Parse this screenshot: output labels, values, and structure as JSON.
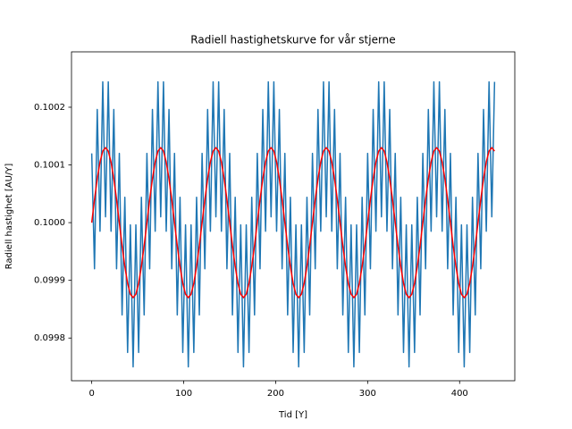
{
  "chart_data": {
    "type": "line",
    "title": "Radiell hastighetskurve for vår stjerne",
    "xlabel": "Tid [Y]",
    "ylabel": "Radiell hastighet [AU/Y]",
    "x": [
      0,
      3,
      6,
      9,
      12,
      15,
      18,
      21,
      24,
      27,
      30,
      33,
      36,
      39,
      42,
      45,
      48,
      51,
      54,
      57,
      60,
      63,
      66,
      69,
      72,
      75,
      78,
      81,
      84,
      87,
      90,
      93,
      96,
      99,
      102,
      105,
      108,
      111,
      114,
      117,
      120,
      123,
      126,
      129,
      132,
      135,
      138,
      141,
      144,
      147,
      150,
      153,
      156,
      159,
      162,
      165,
      168,
      171,
      174,
      177,
      180,
      183,
      186,
      189,
      192,
      195,
      198,
      201,
      204,
      207,
      210,
      213,
      216,
      219,
      222,
      225,
      228,
      231,
      234,
      237,
      240,
      243,
      246,
      249,
      252,
      255,
      258,
      261,
      264,
      267,
      270,
      273,
      276,
      279,
      282,
      285,
      288,
      291,
      294,
      297,
      300,
      303,
      306,
      309,
      312,
      315,
      318,
      321,
      324,
      327,
      330,
      333,
      336,
      339,
      342,
      345,
      348,
      351,
      354,
      357,
      360,
      363,
      366,
      369,
      372,
      375,
      378,
      381,
      384,
      387,
      390,
      393,
      396,
      399,
      402,
      405,
      408,
      411,
      414,
      417,
      420,
      423,
      426,
      429,
      432,
      435,
      438
    ],
    "series": [
      {
        "color": "#1f77b4",
        "values": [
          0.10012,
          0.09992,
          0.100196,
          0.099985,
          0.100244,
          0.10001,
          0.100244,
          0.099985,
          0.100196,
          0.09992,
          0.10012,
          0.09984,
          0.100044,
          0.099775,
          0.099996,
          0.09975,
          0.099996,
          0.099775,
          0.100044,
          0.09984,
          0.10012,
          0.09992,
          0.100196,
          0.099985,
          0.100244,
          0.10001,
          0.100244,
          0.099985,
          0.100196,
          0.09992,
          0.10012,
          0.09984,
          0.100044,
          0.099775,
          0.099996,
          0.09975,
          0.099996,
          0.099775,
          0.100044,
          0.09984,
          0.10012,
          0.09992,
          0.100196,
          0.099985,
          0.100244,
          0.10001,
          0.100244,
          0.099985,
          0.100196,
          0.09992,
          0.10012,
          0.09984,
          0.100044,
          0.099775,
          0.099996,
          0.09975,
          0.099996,
          0.099775,
          0.100044,
          0.09984,
          0.10012,
          0.09992,
          0.100196,
          0.099985,
          0.100244,
          0.10001,
          0.100244,
          0.099985,
          0.100196,
          0.09992,
          0.10012,
          0.09984,
          0.100044,
          0.099775,
          0.099996,
          0.09975,
          0.099996,
          0.099775,
          0.100044,
          0.09984,
          0.10012,
          0.09992,
          0.100196,
          0.099985,
          0.100244,
          0.10001,
          0.100244,
          0.099985,
          0.100196,
          0.09992,
          0.10012,
          0.09984,
          0.100044,
          0.099775,
          0.099996,
          0.09975,
          0.099996,
          0.099775,
          0.100044,
          0.09984,
          0.10012,
          0.09992,
          0.100196,
          0.099985,
          0.100244,
          0.10001,
          0.100244,
          0.099985,
          0.100196,
          0.09992,
          0.10012,
          0.09984,
          0.100044,
          0.099775,
          0.099996,
          0.09975,
          0.099996,
          0.099775,
          0.100044,
          0.09984,
          0.10012,
          0.09992,
          0.100196,
          0.099985,
          0.100244,
          0.10001,
          0.100244,
          0.099985,
          0.100196,
          0.09992,
          0.10012,
          0.09984,
          0.100044,
          0.099775,
          0.099996,
          0.09975,
          0.099996,
          0.099775,
          0.100044,
          0.09984,
          0.10012,
          0.09992,
          0.100196,
          0.099985,
          0.100244,
          0.10001,
          0.100244
        ]
      },
      {
        "color": "#ff0000",
        "values": [
          0.1,
          0.10004,
          0.100076,
          0.100105,
          0.100124,
          0.10013,
          0.100124,
          0.100105,
          0.100076,
          0.10004,
          0.1,
          0.09996,
          0.099924,
          0.099895,
          0.099876,
          0.09987,
          0.099876,
          0.099895,
          0.099924,
          0.09996,
          0.1,
          0.10004,
          0.100076,
          0.100105,
          0.100124,
          0.10013,
          0.100124,
          0.100105,
          0.100076,
          0.10004,
          0.1,
          0.09996,
          0.099924,
          0.099895,
          0.099876,
          0.09987,
          0.099876,
          0.099895,
          0.099924,
          0.09996,
          0.1,
          0.10004,
          0.100076,
          0.100105,
          0.100124,
          0.10013,
          0.100124,
          0.100105,
          0.100076,
          0.10004,
          0.1,
          0.09996,
          0.099924,
          0.099895,
          0.099876,
          0.09987,
          0.099876,
          0.099895,
          0.099924,
          0.09996,
          0.1,
          0.10004,
          0.100076,
          0.100105,
          0.100124,
          0.10013,
          0.100124,
          0.100105,
          0.100076,
          0.10004,
          0.1,
          0.09996,
          0.099924,
          0.099895,
          0.099876,
          0.09987,
          0.099876,
          0.099895,
          0.099924,
          0.09996,
          0.1,
          0.10004,
          0.100076,
          0.100105,
          0.100124,
          0.10013,
          0.100124,
          0.100105,
          0.100076,
          0.10004,
          0.1,
          0.09996,
          0.099924,
          0.099895,
          0.099876,
          0.09987,
          0.099876,
          0.099895,
          0.099924,
          0.09996,
          0.1,
          0.10004,
          0.100076,
          0.100105,
          0.100124,
          0.10013,
          0.100124,
          0.100105,
          0.100076,
          0.10004,
          0.1,
          0.09996,
          0.099924,
          0.099895,
          0.099876,
          0.09987,
          0.099876,
          0.099895,
          0.099924,
          0.09996,
          0.1,
          0.10004,
          0.100076,
          0.100105,
          0.100124,
          0.10013,
          0.100124,
          0.100105,
          0.100076,
          0.10004,
          0.1,
          0.09996,
          0.099924,
          0.099895,
          0.099876,
          0.09987,
          0.099876,
          0.099895,
          0.099924,
          0.09996,
          0.1,
          0.10004,
          0.100076,
          0.100105,
          0.100124,
          0.10013,
          0.100124
        ]
      }
    ],
    "xlim": [
      -22,
      460
    ],
    "ylim": [
      0.099726,
      0.100296
    ],
    "xticks": [
      0,
      100,
      200,
      300,
      400
    ],
    "yticks": [
      0.0998,
      0.0999,
      {
        "value": 0.1,
        "label": "0.1000"
      },
      0.1001,
      0.1002
    ],
    "grid": false
  }
}
